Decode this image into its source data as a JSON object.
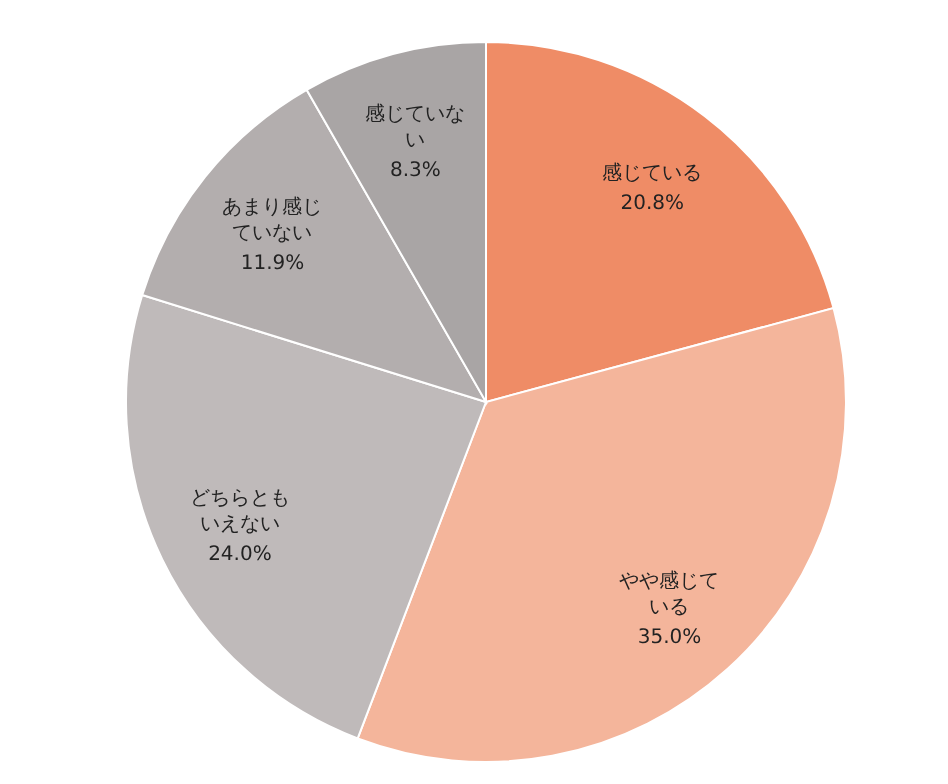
{
  "chart_data": {
    "type": "pie",
    "categories": [
      "感じている",
      "やや感じている",
      "どちらともいえない",
      "あまり感じていない",
      "感じていない"
    ],
    "values": [
      20.8,
      35.0,
      24.0,
      11.9,
      8.3
    ],
    "value_labels": [
      "20.8%",
      "35.0%",
      "24.0%",
      "11.9%",
      "8.3%"
    ],
    "colors": [
      "#ef8c66",
      "#f4b59b",
      "#bfbaba",
      "#b3aeae",
      "#a9a5a5"
    ],
    "legend": false
  }
}
